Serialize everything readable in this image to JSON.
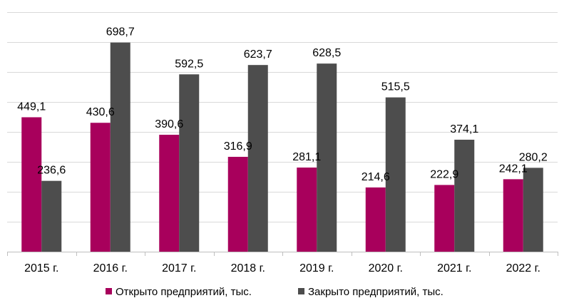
{
  "chart_data": {
    "type": "bar",
    "categories": [
      "2015 г.",
      "2016 г.",
      "2017 г.",
      "2018 г.",
      "2019 г.",
      "2020 г.",
      "2021 г.",
      "2022 г."
    ],
    "series": [
      {
        "name": "Открыто предприятий, тыс.",
        "color": "#a8005c",
        "values": [
          449.1,
          430.6,
          390.6,
          316.9,
          281.1,
          214.6,
          222.9,
          242.1
        ],
        "labels": [
          "449,1",
          "430,6",
          "390,6",
          "316,9",
          "281,1",
          "214,6",
          "222,9",
          "242,1"
        ]
      },
      {
        "name": "Закрыто предприятий, тыс.",
        "color": "#4d4d4d",
        "values": [
          236.6,
          698.7,
          592.5,
          623.7,
          628.5,
          515.5,
          374.1,
          280.2
        ],
        "labels": [
          "236,6",
          "698,7",
          "592,5",
          "623,7",
          "628,5",
          "515,5",
          "374,1",
          "280,2"
        ]
      }
    ],
    "ylim": [
      0,
      800
    ],
    "grid": true,
    "gridline_step": 100,
    "legend_position": "bottom",
    "title": "",
    "xlabel": "",
    "ylabel": ""
  }
}
